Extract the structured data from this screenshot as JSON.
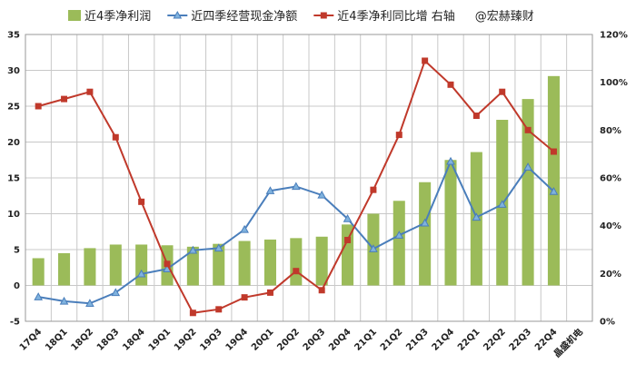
{
  "chart_data": {
    "type": "bar",
    "categories": [
      "17Q4",
      "18Q1",
      "18Q2",
      "18Q3",
      "18Q4",
      "19Q1",
      "19Q2",
      "19Q3",
      "19Q4",
      "20Q1",
      "20Q2",
      "20Q3",
      "20Q4",
      "21Q1",
      "21Q2",
      "21Q3",
      "21Q4",
      "22Q1",
      "22Q2",
      "22Q3",
      "22Q4",
      "晶盛机电"
    ],
    "y_left": {
      "min": -5,
      "max": 35,
      "ticks": [
        "-5",
        "0",
        "5",
        "10",
        "15",
        "20",
        "25",
        "30",
        "35"
      ]
    },
    "y_right": {
      "min": 0,
      "max": 120,
      "ticks": [
        "0%",
        "20%",
        "40%",
        "60%",
        "80%",
        "100%",
        "120%"
      ]
    },
    "grid": true,
    "legend_position": "top",
    "series": [
      {
        "name": "近4季净利润",
        "type": "bar",
        "axis": "left",
        "color": "#9bbb59",
        "values": [
          3.8,
          4.5,
          5.2,
          5.7,
          5.7,
          5.6,
          5.4,
          5.8,
          6.2,
          6.4,
          6.6,
          6.8,
          8.5,
          10.0,
          11.8,
          14.4,
          17.5,
          18.6,
          23.1,
          26.0,
          29.2,
          null
        ]
      },
      {
        "name": "近四季经营现金净额",
        "type": "line",
        "axis": "left",
        "color": "#4a7ebb",
        "marker": "triangle",
        "values": [
          -1.6,
          -2.2,
          -2.5,
          -1.0,
          1.6,
          2.3,
          4.9,
          5.2,
          7.8,
          13.2,
          13.8,
          12.6,
          9.3,
          5.1,
          7.0,
          8.7,
          17.3,
          9.5,
          11.3,
          16.5,
          13.1,
          null
        ]
      },
      {
        "name": "近4季净利同比增 右轴",
        "type": "line",
        "axis": "right",
        "color": "#c0392b",
        "marker": "square",
        "values": [
          90,
          93,
          96,
          77,
          50,
          24,
          3.5,
          5,
          10,
          12,
          21,
          13,
          34,
          55,
          78,
          109,
          99,
          86,
          96,
          80,
          71,
          null
        ]
      }
    ],
    "annotation": "@宏赫臻财"
  }
}
